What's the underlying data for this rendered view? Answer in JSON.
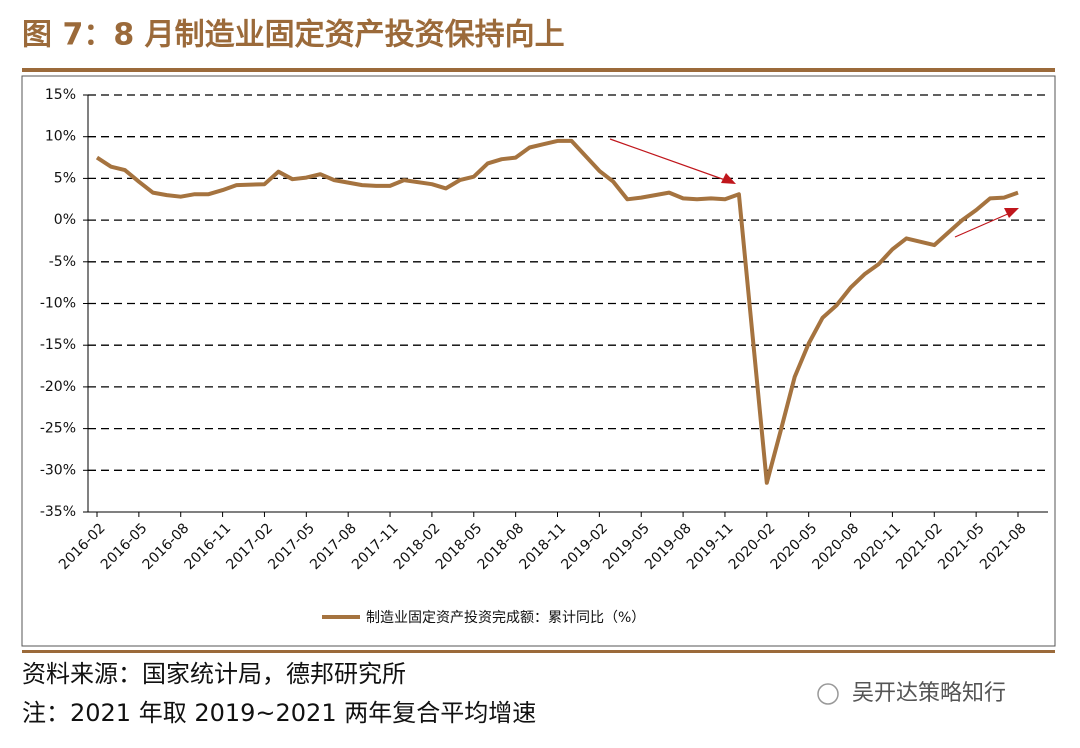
{
  "chart_data": {
    "type": "line",
    "title": "图 7：8 月制造业固定资产投资保持向上",
    "x": [
      "2016-02",
      "2016-03",
      "2016-04",
      "2016-05",
      "2016-06",
      "2016-07",
      "2016-08",
      "2016-09",
      "2016-10",
      "2016-11",
      "2016-12",
      "2017-02",
      "2017-03",
      "2017-04",
      "2017-05",
      "2017-06",
      "2017-07",
      "2017-08",
      "2017-09",
      "2017-10",
      "2017-11",
      "2017-12",
      "2018-02",
      "2018-03",
      "2018-04",
      "2018-05",
      "2018-06",
      "2018-07",
      "2018-08",
      "2018-09",
      "2018-10",
      "2018-11",
      "2018-12",
      "2019-02",
      "2019-03",
      "2019-04",
      "2019-05",
      "2019-06",
      "2019-07",
      "2019-08",
      "2019-09",
      "2019-10",
      "2019-11",
      "2019-12",
      "2020-02",
      "2020-03",
      "2020-04",
      "2020-05",
      "2020-06",
      "2020-07",
      "2020-08",
      "2020-09",
      "2020-10",
      "2020-11",
      "2020-12",
      "2021-02",
      "2021-03",
      "2021-04",
      "2021-05",
      "2021-06",
      "2021-07",
      "2021-08"
    ],
    "series": [
      {
        "name": "制造业固定资产投资完成额：累计同比（%）",
        "color": "#a5733f",
        "values": [
          7.5,
          6.4,
          6.0,
          4.6,
          3.3,
          3.0,
          2.8,
          3.1,
          3.1,
          3.6,
          4.2,
          4.3,
          5.8,
          4.9,
          5.1,
          5.5,
          4.8,
          4.5,
          4.2,
          4.1,
          4.1,
          4.8,
          4.3,
          3.8,
          4.8,
          5.2,
          6.8,
          7.3,
          7.5,
          8.7,
          9.1,
          9.5,
          9.5,
          5.9,
          4.6,
          2.5,
          2.7,
          3.0,
          3.3,
          2.6,
          2.5,
          2.6,
          2.5,
          3.1,
          -31.5,
          -25.2,
          -18.8,
          -14.8,
          -11.7,
          -10.2,
          -8.1,
          -6.5,
          -5.3,
          -3.5,
          -2.2,
          -3.0,
          -1.5,
          0.0,
          1.2,
          2.6,
          2.7,
          3.3
        ]
      }
    ],
    "xlim": [
      "2016-02",
      "2021-08"
    ],
    "xticks": [
      "2016-02",
      "2016-05",
      "2016-08",
      "2016-11",
      "2017-02",
      "2017-05",
      "2017-08",
      "2017-11",
      "2018-02",
      "2018-05",
      "2018-08",
      "2018-11",
      "2019-02",
      "2019-05",
      "2019-08",
      "2019-11",
      "2020-02",
      "2020-05",
      "2020-08",
      "2020-11",
      "2021-02",
      "2021-05",
      "2021-08"
    ],
    "ylim": [
      -35,
      15
    ],
    "yticks": [
      {
        "value": 15,
        "label": "15%"
      },
      {
        "value": 10,
        "label": "10%"
      },
      {
        "value": 5,
        "label": "5%"
      },
      {
        "value": 0,
        "label": "0%"
      },
      {
        "value": -5,
        "label": "-5%"
      },
      {
        "value": -10,
        "label": "-10%"
      },
      {
        "value": -15,
        "label": "-15%"
      },
      {
        "value": -20,
        "label": "-20%"
      },
      {
        "value": -25,
        "label": "-25%"
      },
      {
        "value": -30,
        "label": "-30%"
      },
      {
        "value": -35,
        "label": "-35%"
      }
    ],
    "grid": true,
    "legend": "bottom"
  },
  "source": "资料来源：国家统计局，德邦研究所",
  "note": "注：2021 年取 2019~2021 两年复合平均增速",
  "watermark": "吴开达策略知行"
}
